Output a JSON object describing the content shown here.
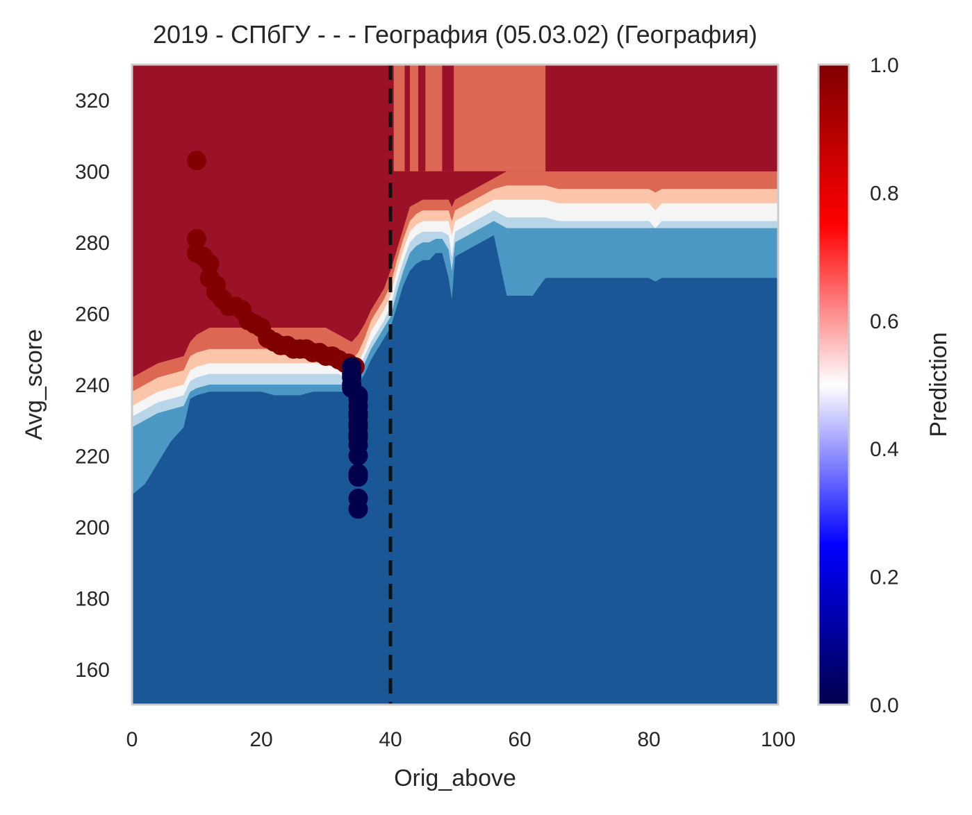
{
  "chart_data": {
    "type": "heatmap",
    "title": "2019 - СПбГУ - - - География (05.03.02) (География)",
    "xlabel": "Orig_above",
    "ylabel": "Avg_score",
    "xlim": [
      0,
      100
    ],
    "ylim": [
      150,
      330
    ],
    "xticks": [
      "0",
      "20",
      "40",
      "60",
      "80",
      "100"
    ],
    "yticks": [
      "160",
      "180",
      "200",
      "220",
      "240",
      "260",
      "280",
      "300",
      "320"
    ],
    "colorbar": {
      "label": "Prediction",
      "range": [
        0,
        1
      ],
      "ticks": [
        "0.0",
        "0.2",
        "0.4",
        "0.6",
        "0.8",
        "1.0"
      ],
      "colormap": "seismic"
    },
    "contour_levels": [
      {
        "level": 0.1,
        "color": "#1a5796"
      },
      {
        "level": 0.25,
        "color": "#4b98c4"
      },
      {
        "level": 0.4,
        "color": "#b8d6e8"
      },
      {
        "level": 0.5,
        "color": "#f5f5f5"
      },
      {
        "level": 0.6,
        "color": "#fbc5aa"
      },
      {
        "level": 0.75,
        "color": "#dc6753"
      },
      {
        "level": 0.9,
        "color": "#9b1127"
      }
    ],
    "threshold_line": {
      "x": 40,
      "style": "dashed",
      "color": "#111111"
    },
    "boundary_profile": {
      "x": [
        0,
        2,
        4,
        6,
        8,
        9,
        10,
        12,
        14,
        16,
        18,
        20,
        22,
        24,
        26,
        28,
        30,
        31,
        32,
        33,
        34,
        35,
        36,
        37,
        38,
        39,
        40,
        41,
        42,
        43,
        44,
        45,
        46,
        47,
        48,
        49,
        49.5,
        50,
        51,
        52,
        54,
        56,
        58,
        60,
        62,
        64,
        66,
        68,
        70,
        75,
        80,
        81,
        82,
        85,
        90,
        95,
        100
      ],
      "p90": [
        242,
        244,
        246,
        247,
        248,
        252,
        254,
        256,
        256,
        256,
        256,
        256,
        256,
        256,
        256,
        256,
        256,
        255,
        254,
        253,
        252,
        254,
        257,
        261,
        264,
        267,
        272,
        278,
        284,
        290,
        291,
        292,
        292,
        292,
        292,
        292,
        290,
        292,
        293,
        294,
        296,
        298,
        300,
        300,
        300,
        300,
        300,
        300,
        300,
        300,
        300,
        300,
        300,
        300,
        300,
        300,
        300
      ],
      "p75": [
        238,
        240,
        242,
        243,
        244,
        248,
        249,
        250,
        250,
        250,
        250,
        250,
        250,
        250,
        250,
        250,
        250,
        249,
        248,
        247,
        247,
        249,
        253,
        258,
        261,
        264,
        268,
        275,
        281,
        286,
        288,
        289,
        289,
        289,
        289,
        289,
        286,
        289,
        290,
        291,
        293,
        295,
        296,
        296,
        296,
        296,
        295,
        295,
        295,
        295,
        295,
        294,
        295,
        295,
        295,
        295,
        295
      ],
      "p60": [
        234,
        236,
        238,
        239,
        240,
        244,
        245,
        246,
        246,
        246,
        246,
        246,
        246,
        246,
        246,
        246,
        246,
        245,
        245,
        244,
        244,
        246,
        250,
        255,
        258,
        261,
        265,
        272,
        278,
        283,
        285,
        286,
        286,
        286,
        286,
        286,
        282,
        286,
        287,
        288,
        290,
        292,
        292,
        292,
        292,
        292,
        291,
        291,
        291,
        291,
        291,
        289,
        291,
        291,
        291,
        291,
        291
      ],
      "p50": [
        231,
        233,
        235,
        236,
        237,
        241,
        242,
        243,
        243,
        243,
        243,
        243,
        243,
        243,
        243,
        243,
        243,
        243,
        243,
        242,
        242,
        244,
        248,
        252,
        255,
        258,
        262,
        269,
        275,
        280,
        282,
        283,
        283,
        283,
        283,
        282,
        276,
        283,
        284,
        285,
        287,
        289,
        287,
        287,
        287,
        287,
        286,
        286,
        286,
        286,
        286,
        284,
        286,
        286,
        286,
        286,
        286
      ],
      "p40": [
        228,
        230,
        232,
        233,
        234,
        238,
        239,
        240,
        240,
        240,
        240,
        240,
        240,
        240,
        240,
        240,
        240,
        240,
        240,
        240,
        240,
        242,
        246,
        250,
        253,
        256,
        259,
        266,
        272,
        277,
        279,
        280,
        280,
        281,
        281,
        278,
        272,
        280,
        281,
        282,
        284,
        286,
        284,
        284,
        284,
        284,
        284,
        284,
        284,
        284,
        284,
        284,
        284,
        284,
        284,
        284,
        284
      ],
      "p25": [
        209,
        212,
        218,
        224,
        228,
        236,
        237,
        238,
        238,
        238,
        238,
        238,
        237,
        237,
        237,
        238,
        238,
        238,
        238,
        238,
        238,
        240,
        243,
        247,
        250,
        253,
        256,
        262,
        268,
        272,
        274,
        275,
        275,
        277,
        277,
        270,
        264,
        276,
        277,
        278,
        280,
        282,
        265,
        265,
        265,
        270,
        270,
        270,
        270,
        270,
        270,
        269,
        270,
        270,
        270,
        270,
        270
      ]
    },
    "scatter": {
      "positive": {
        "x": [
          10,
          10,
          10,
          11,
          12,
          12,
          13,
          13,
          14,
          15,
          16,
          17,
          18,
          19,
          20,
          21,
          22,
          23,
          24,
          25,
          26,
          27,
          28,
          29,
          30,
          31,
          32,
          33,
          33.5,
          34,
          34.5
        ],
        "y": [
          303,
          281,
          277,
          276,
          274,
          270,
          268,
          266,
          264,
          262,
          262,
          261,
          258,
          257,
          256,
          253,
          252,
          251,
          251,
          250,
          250,
          250,
          249,
          249,
          248,
          248,
          247,
          246,
          246,
          245,
          245
        ],
        "color": "#800000"
      },
      "negative": {
        "x": [
          34,
          34,
          34,
          34,
          34,
          35,
          35,
          35,
          35,
          35,
          35,
          35,
          35,
          35,
          35,
          35,
          35,
          35,
          35,
          35
        ],
        "y": [
          245,
          243,
          242,
          240,
          239,
          237,
          236,
          234,
          232,
          231,
          229,
          228,
          226,
          225,
          223,
          220,
          215,
          214,
          208,
          205
        ],
        "color": "#00004c"
      }
    }
  }
}
